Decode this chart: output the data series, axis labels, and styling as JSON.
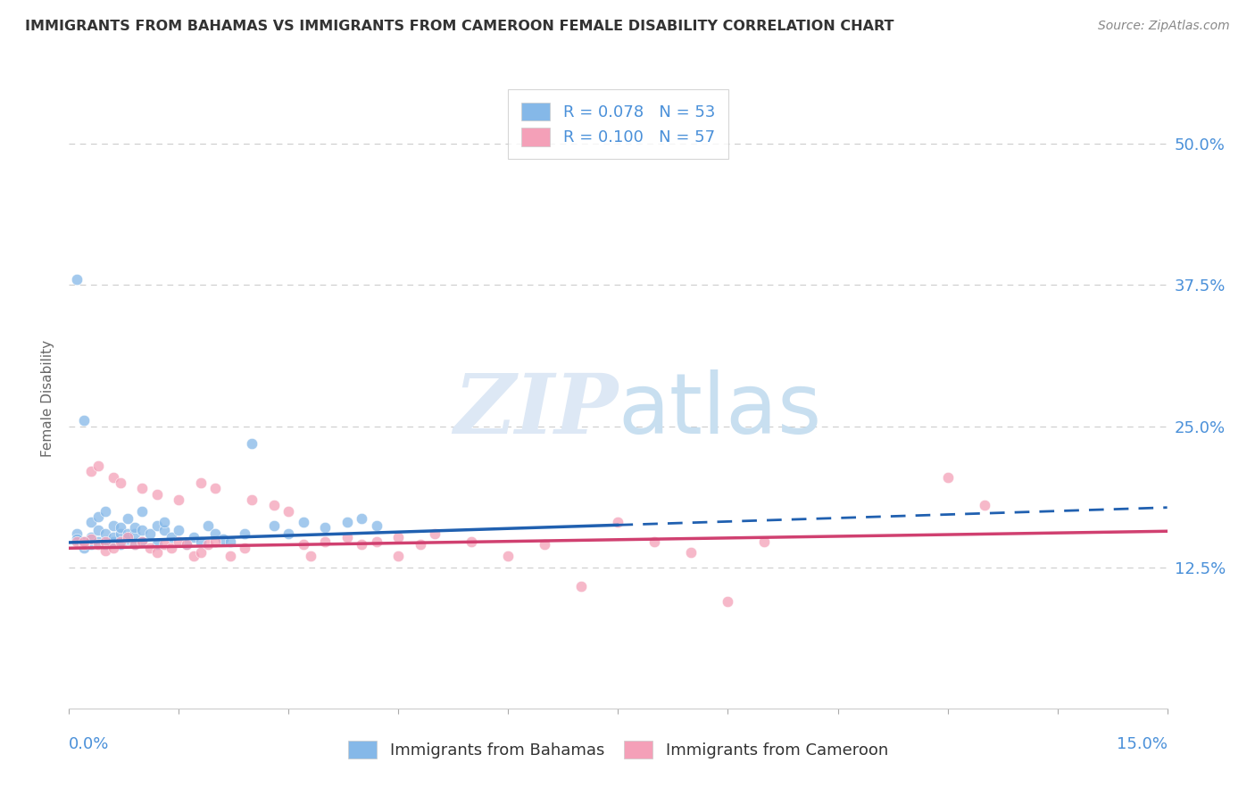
{
  "title": "IMMIGRANTS FROM BAHAMAS VS IMMIGRANTS FROM CAMEROON FEMALE DISABILITY CORRELATION CHART",
  "source": "Source: ZipAtlas.com",
  "R1": "0.078",
  "N1": "53",
  "R2": "0.100",
  "N2": "57",
  "xlim": [
    0.0,
    0.15
  ],
  "ylim": [
    0.0,
    0.55
  ],
  "yticks": [
    0.125,
    0.25,
    0.375,
    0.5
  ],
  "ytick_labels": [
    "12.5%",
    "25.0%",
    "37.5%",
    "50.0%"
  ],
  "xtick_label_left": "0.0%",
  "xtick_label_right": "15.0%",
  "ylabel": "Female Disability",
  "legend_label1": "Immigrants from Bahamas",
  "legend_label2": "Immigrants from Cameroon",
  "color_blue": "#85b8e8",
  "color_pink": "#f4a0b8",
  "trend_blue_color": "#2060b0",
  "trend_pink_color": "#d04070",
  "axis_label_color": "#4a90d9",
  "grid_color": "#cccccc",
  "title_color": "#333333",
  "source_color": "#888888",
  "scatter_bahamas": [
    [
      0.001,
      0.155
    ],
    [
      0.002,
      0.148
    ],
    [
      0.002,
      0.142
    ],
    [
      0.003,
      0.152
    ],
    [
      0.003,
      0.165
    ],
    [
      0.003,
      0.145
    ],
    [
      0.004,
      0.158
    ],
    [
      0.004,
      0.17
    ],
    [
      0.004,
      0.148
    ],
    [
      0.005,
      0.155
    ],
    [
      0.005,
      0.175
    ],
    [
      0.005,
      0.145
    ],
    [
      0.006,
      0.148
    ],
    [
      0.006,
      0.162
    ],
    [
      0.006,
      0.152
    ],
    [
      0.007,
      0.155
    ],
    [
      0.007,
      0.145
    ],
    [
      0.007,
      0.16
    ],
    [
      0.008,
      0.15
    ],
    [
      0.008,
      0.168
    ],
    [
      0.008,
      0.155
    ],
    [
      0.009,
      0.155
    ],
    [
      0.009,
      0.16
    ],
    [
      0.009,
      0.145
    ],
    [
      0.01,
      0.148
    ],
    [
      0.01,
      0.175
    ],
    [
      0.01,
      0.158
    ],
    [
      0.011,
      0.155
    ],
    [
      0.012,
      0.145
    ],
    [
      0.012,
      0.162
    ],
    [
      0.013,
      0.158
    ],
    [
      0.013,
      0.165
    ],
    [
      0.014,
      0.152
    ],
    [
      0.015,
      0.158
    ],
    [
      0.016,
      0.145
    ],
    [
      0.017,
      0.152
    ],
    [
      0.018,
      0.148
    ],
    [
      0.019,
      0.162
    ],
    [
      0.02,
      0.155
    ],
    [
      0.021,
      0.15
    ],
    [
      0.022,
      0.148
    ],
    [
      0.024,
      0.155
    ],
    [
      0.025,
      0.235
    ],
    [
      0.028,
      0.162
    ],
    [
      0.03,
      0.155
    ],
    [
      0.032,
      0.165
    ],
    [
      0.035,
      0.16
    ],
    [
      0.038,
      0.165
    ],
    [
      0.04,
      0.168
    ],
    [
      0.042,
      0.162
    ],
    [
      0.001,
      0.38
    ],
    [
      0.002,
      0.255
    ],
    [
      0.001,
      0.15
    ]
  ],
  "scatter_cameroon": [
    [
      0.001,
      0.148
    ],
    [
      0.002,
      0.145
    ],
    [
      0.003,
      0.15
    ],
    [
      0.003,
      0.21
    ],
    [
      0.004,
      0.145
    ],
    [
      0.004,
      0.215
    ],
    [
      0.005,
      0.148
    ],
    [
      0.005,
      0.14
    ],
    [
      0.006,
      0.142
    ],
    [
      0.006,
      0.205
    ],
    [
      0.007,
      0.148
    ],
    [
      0.007,
      0.2
    ],
    [
      0.008,
      0.152
    ],
    [
      0.009,
      0.145
    ],
    [
      0.01,
      0.148
    ],
    [
      0.01,
      0.195
    ],
    [
      0.011,
      0.142
    ],
    [
      0.012,
      0.138
    ],
    [
      0.012,
      0.19
    ],
    [
      0.013,
      0.145
    ],
    [
      0.014,
      0.142
    ],
    [
      0.015,
      0.148
    ],
    [
      0.015,
      0.185
    ],
    [
      0.016,
      0.145
    ],
    [
      0.017,
      0.135
    ],
    [
      0.018,
      0.138
    ],
    [
      0.018,
      0.2
    ],
    [
      0.019,
      0.145
    ],
    [
      0.02,
      0.148
    ],
    [
      0.02,
      0.195
    ],
    [
      0.022,
      0.135
    ],
    [
      0.024,
      0.142
    ],
    [
      0.025,
      0.185
    ],
    [
      0.028,
      0.18
    ],
    [
      0.03,
      0.175
    ],
    [
      0.032,
      0.145
    ],
    [
      0.033,
      0.135
    ],
    [
      0.035,
      0.148
    ],
    [
      0.038,
      0.152
    ],
    [
      0.04,
      0.145
    ],
    [
      0.042,
      0.148
    ],
    [
      0.045,
      0.152
    ],
    [
      0.045,
      0.135
    ],
    [
      0.048,
      0.145
    ],
    [
      0.05,
      0.155
    ],
    [
      0.055,
      0.148
    ],
    [
      0.06,
      0.135
    ],
    [
      0.065,
      0.145
    ],
    [
      0.07,
      0.108
    ],
    [
      0.075,
      0.165
    ],
    [
      0.08,
      0.148
    ],
    [
      0.085,
      0.138
    ],
    [
      0.09,
      0.095
    ],
    [
      0.12,
      0.205
    ],
    [
      0.125,
      0.18
    ],
    [
      0.095,
      0.148
    ],
    [
      0.002,
      0.148
    ]
  ],
  "trend_bahamas_x0": 0.0,
  "trend_bahamas_y0": 0.147,
  "trend_bahamas_x1": 0.15,
  "trend_bahamas_y1": 0.178,
  "trend_bahamas_dash_from": 0.075,
  "trend_cameroon_x0": 0.0,
  "trend_cameroon_y0": 0.142,
  "trend_cameroon_x1": 0.15,
  "trend_cameroon_y1": 0.157
}
